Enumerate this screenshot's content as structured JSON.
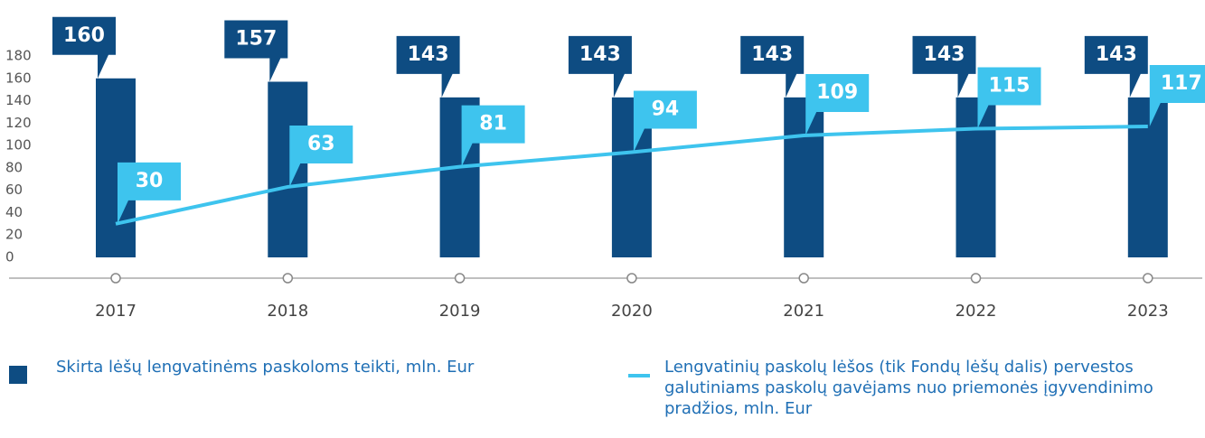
{
  "chart_data": {
    "type": "bar",
    "categories": [
      "2017",
      "2018",
      "2019",
      "2020",
      "2021",
      "2022",
      "2023"
    ],
    "series": [
      {
        "name": "Skirta lėšų lengvatinėms paskoloms teikti, mln. Eur",
        "type": "bar",
        "color": "#0e4c82",
        "values": [
          160,
          157,
          143,
          143,
          143,
          143,
          143
        ]
      },
      {
        "name": "Lengvatinių paskolų lėšos (tik Fondų lėšų dalis) pervestos galutiniams paskolų gavėjams nuo priemonės įgyvendinimo pradžios, mln. Eur",
        "type": "line",
        "color": "#3ec4ee",
        "values": [
          30,
          63,
          81,
          94,
          109,
          115,
          117
        ]
      }
    ],
    "ylim": [
      0,
      180
    ],
    "yticks": [
      0,
      20,
      40,
      60,
      80,
      100,
      120,
      140,
      160,
      180
    ],
    "grid": false,
    "legend": "bottom"
  }
}
